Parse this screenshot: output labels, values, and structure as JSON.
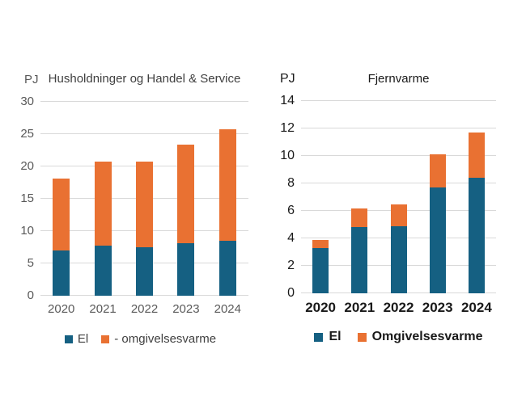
{
  "page": {
    "background": "#FFFFFF"
  },
  "colors": {
    "el_blue": "#156082",
    "omgivelsesvarme_orange": "#E97132",
    "gridline_grey": "#D9D9D9",
    "left_chart_text": "#595959",
    "right_chart_text": "#1A1A1A"
  },
  "chart_data": [
    {
      "type": "bar",
      "stacked": true,
      "title": "Husholdninger og Handel & Service",
      "axis_unit": "PJ",
      "categories": [
        "2020",
        "2021",
        "2022",
        "2023",
        "2024"
      ],
      "series": [
        {
          "name": "El",
          "color": "#156082",
          "values": [
            7.0,
            7.8,
            7.5,
            8.1,
            8.5
          ]
        },
        {
          "name": "- omgivelsesvarme",
          "color": "#E97132",
          "values": [
            11.1,
            12.9,
            13.2,
            15.3,
            17.3
          ]
        }
      ],
      "totals": [
        18.1,
        20.7,
        20.7,
        23.4,
        25.8
      ],
      "xlabel": "",
      "ylabel": "PJ",
      "ylim": [
        0,
        30
      ],
      "yticks": [
        0,
        5,
        10,
        15,
        20,
        25,
        30
      ],
      "grid": true,
      "grid_color": "#D9D9D9",
      "legend_position": "bottom"
    },
    {
      "type": "bar",
      "stacked": true,
      "title": "Fjernvarme",
      "axis_unit": "PJ",
      "categories": [
        "2020",
        "2021",
        "2022",
        "2023",
        "2024"
      ],
      "series": [
        {
          "name": "El",
          "color": "#156082",
          "values": [
            3.3,
            4.8,
            4.9,
            7.7,
            8.4
          ]
        },
        {
          "name": "Omgivelsesvarme",
          "color": "#E97132",
          "values": [
            0.6,
            1.4,
            1.6,
            2.4,
            3.3
          ]
        }
      ],
      "totals": [
        3.9,
        6.2,
        6.5,
        10.1,
        11.7
      ],
      "xlabel": "",
      "ylabel": "PJ",
      "ylim": [
        0,
        14
      ],
      "yticks": [
        0,
        2,
        4,
        6,
        8,
        10,
        12,
        14
      ],
      "grid": true,
      "grid_color": "#D9D9D9",
      "legend_position": "bottom"
    }
  ]
}
